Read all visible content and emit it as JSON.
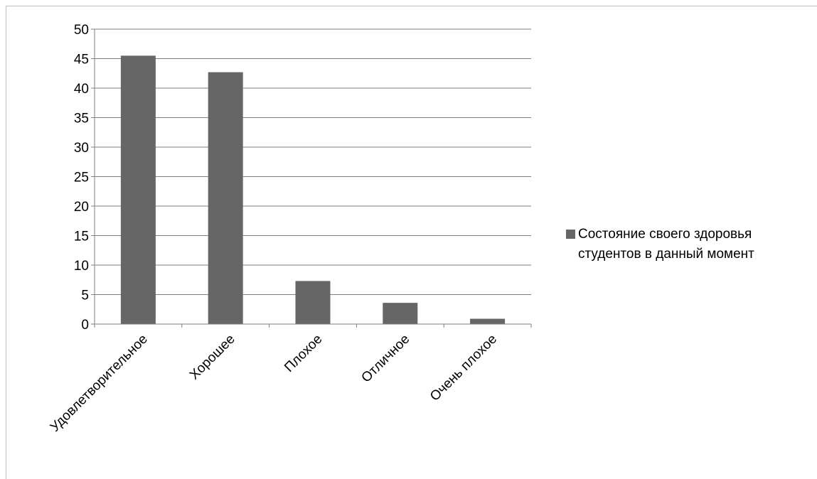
{
  "chart_data": {
    "type": "bar",
    "categories": [
      "Удовлетворительное",
      "Хорошее",
      "Плохое",
      "Отличное",
      "Очень плохое"
    ],
    "series": [
      {
        "name": "Состояние своего здоровья студентов в данный момент",
        "values": [
          45.5,
          42.7,
          7.3,
          3.6,
          0.9
        ],
        "color": "#666666"
      }
    ],
    "ylim": [
      0,
      50
    ],
    "yticks": [
      0,
      5,
      10,
      15,
      20,
      25,
      30,
      35,
      40,
      45,
      50
    ],
    "grid": true,
    "legend_position": "right",
    "gridline_color": "#7f7f7f"
  }
}
